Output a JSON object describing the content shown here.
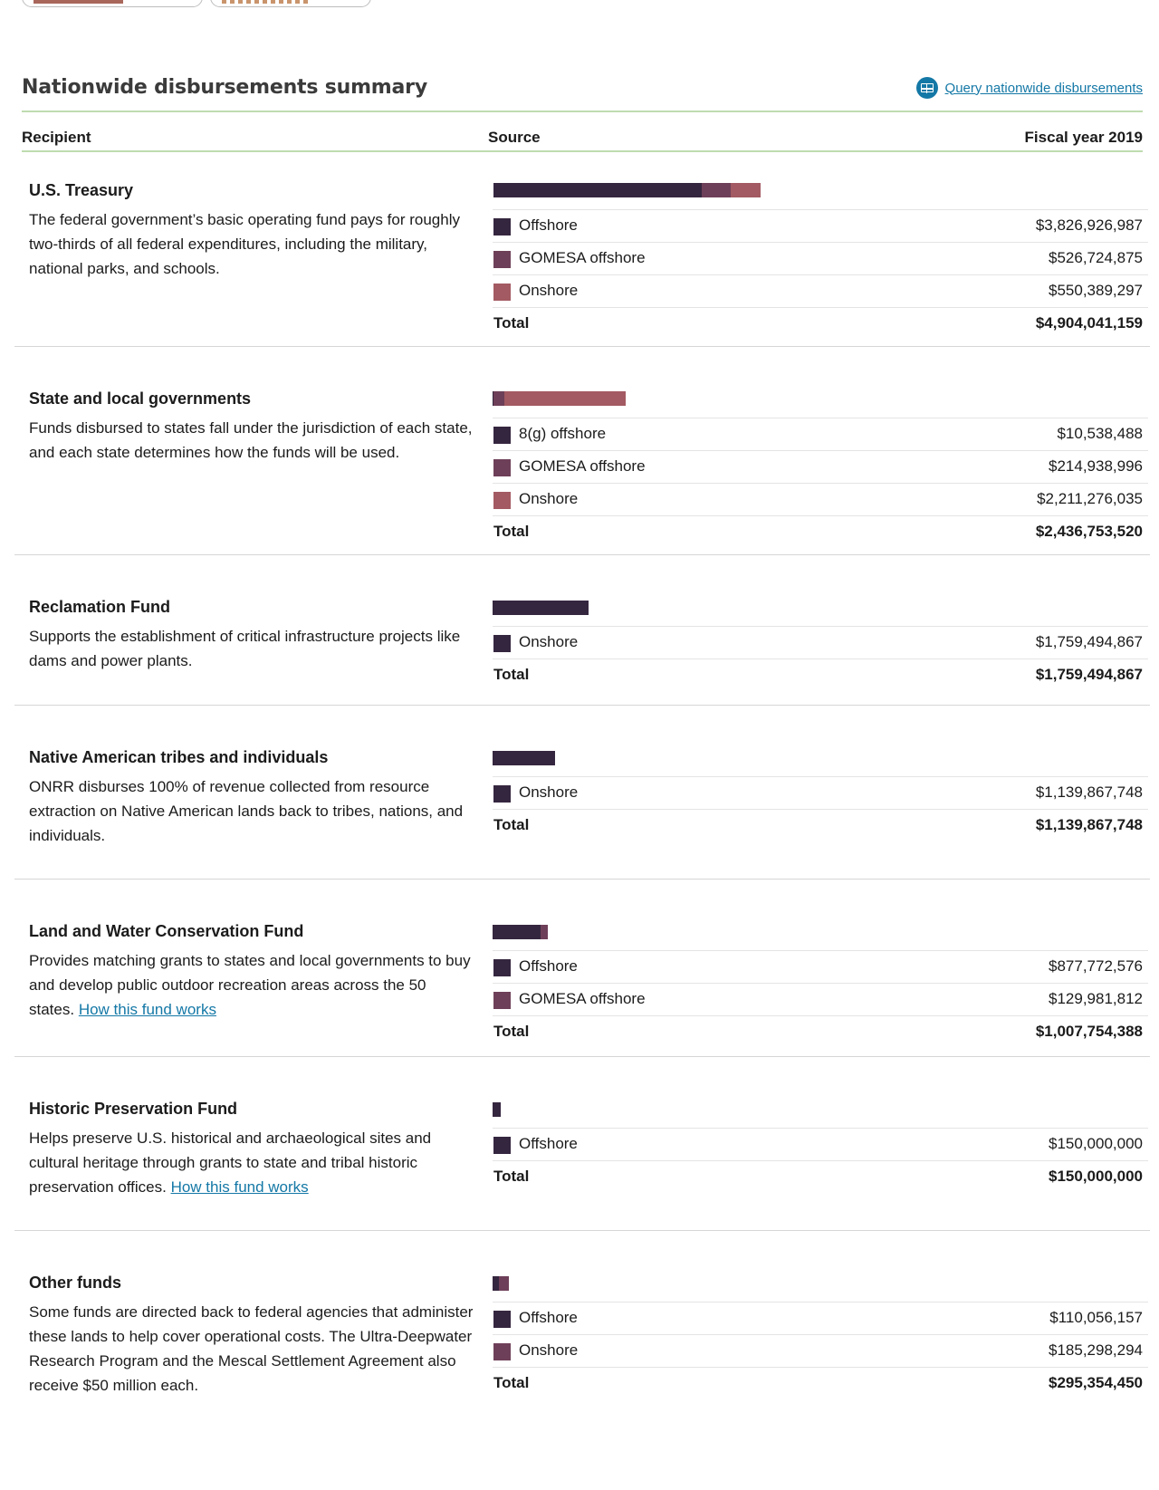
{
  "header": {
    "title": "Nationwide disbursements summary",
    "query_link": "Query nationwide disbursements"
  },
  "columns": {
    "recipient": "Recipient",
    "source": "Source",
    "fiscal_year": "Fiscal year 2019"
  },
  "colors": {
    "offshore": "#35263f",
    "gomesa_offshore": "#6e3f58",
    "onshore": "#a35a62",
    "accent_link": "#1478a6",
    "header_rule": "#bfdcb0"
  },
  "total_label": "Total",
  "sections": [
    {
      "title": "U.S. Treasury",
      "description": "The federal government’s basic operating fund pays for roughly two-thirds of all federal expenditures, including the military, national parks, and schools.",
      "rows": [
        {
          "label": "Offshore",
          "value": "$3,826,926,987"
        },
        {
          "label": "GOMESA offshore",
          "value": "$526,724,875"
        },
        {
          "label": "Onshore",
          "value": "$550,389,297"
        }
      ],
      "total": "$4,904,041,159"
    },
    {
      "title": "State and local governments",
      "description": "Funds disbursed to states fall under the jurisdiction of each state, and each state determines how the funds will be used.",
      "rows": [
        {
          "label": "8(g) offshore",
          "value": "$10,538,488"
        },
        {
          "label": "GOMESA offshore",
          "value": "$214,938,996"
        },
        {
          "label": "Onshore",
          "value": "$2,211,276,035"
        }
      ],
      "total": "$2,436,753,520"
    },
    {
      "title": "Reclamation Fund",
      "description": "Supports the establishment of critical infrastructure projects like dams and power plants.",
      "rows": [
        {
          "label": "Onshore",
          "value": "$1,759,494,867"
        }
      ],
      "total": "$1,759,494,867"
    },
    {
      "title": "Native American tribes and individuals",
      "description": "ONRR disburses 100% of revenue collected from resource extraction on Native American lands back to tribes, nations, and individuals.",
      "rows": [
        {
          "label": "Onshore",
          "value": "$1,139,867,748"
        }
      ],
      "total": "$1,139,867,748"
    },
    {
      "title": "Land and Water Conservation Fund",
      "description": "Provides matching grants to states and local governments to buy and develop public outdoor recreation areas across the 50 states.",
      "link": "How this fund works",
      "rows": [
        {
          "label": "Offshore",
          "value": "$877,772,576"
        },
        {
          "label": "GOMESA offshore",
          "value": "$129,981,812"
        }
      ],
      "total": "$1,007,754,388"
    },
    {
      "title": "Historic Preservation Fund",
      "description": "Helps preserve U.S. historical and archaeological sites and cultural heritage through grants to state and tribal historic preservation offices.",
      "link": "How this fund works",
      "rows": [
        {
          "label": "Offshore",
          "value": "$150,000,000"
        }
      ],
      "total": "$150,000,000"
    },
    {
      "title": "Other funds",
      "description": "Some funds are directed back to federal agencies that administer these lands to help cover operational costs. The Ultra-Deepwater Research Program and the Mescal Settlement Agreement also receive $50 million each.",
      "rows": [
        {
          "label": "Offshore",
          "value": "$110,056,157"
        },
        {
          "label": "Onshore",
          "value": "$185,298,294"
        }
      ],
      "total": "$295,354,450"
    }
  ]
}
